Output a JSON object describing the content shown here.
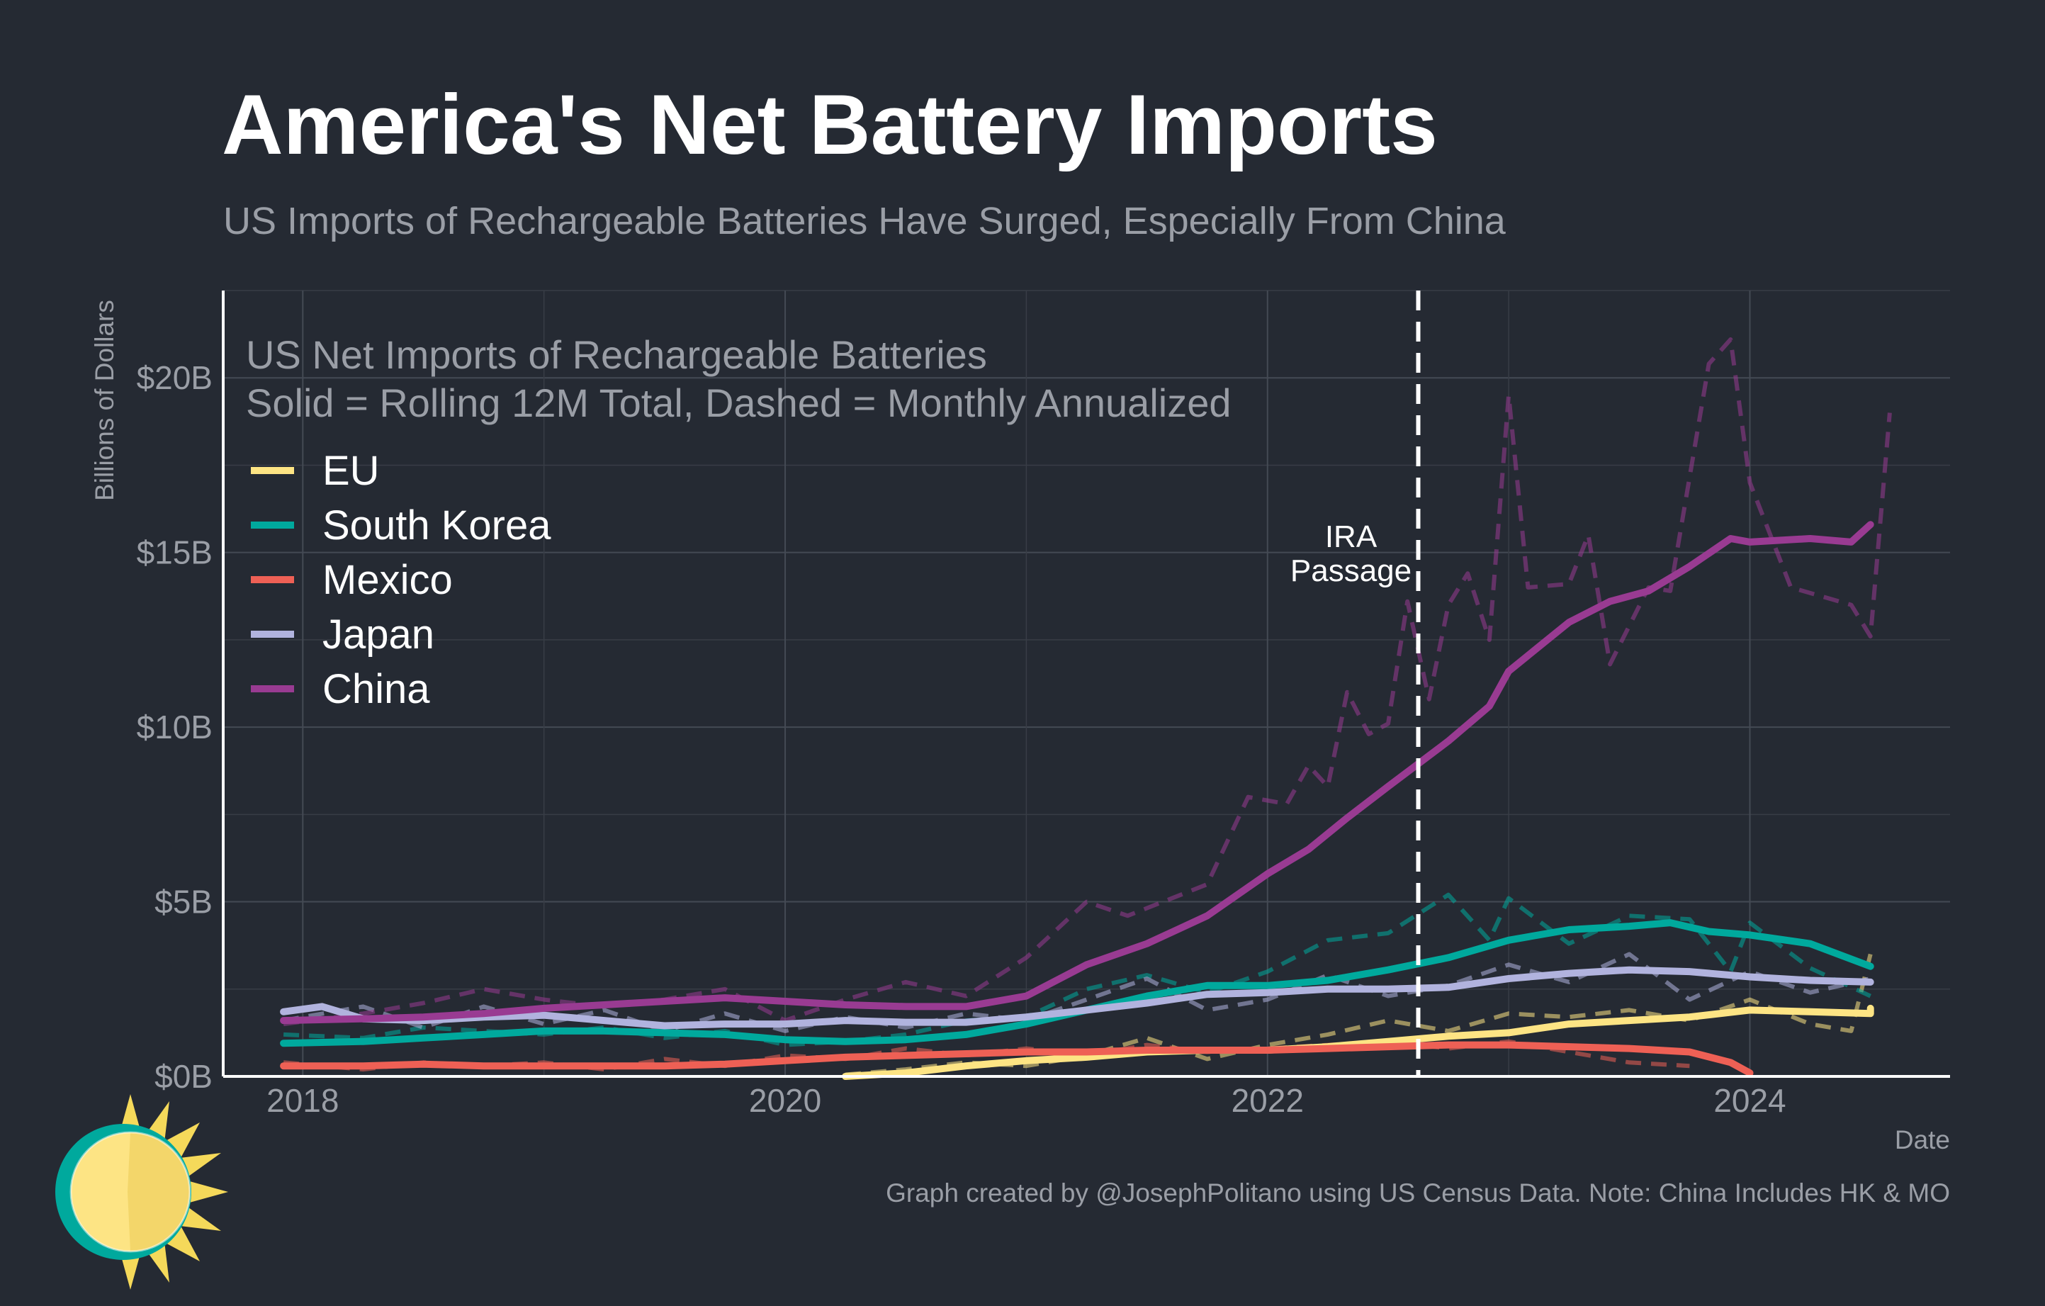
{
  "title": "America's Net Battery Imports",
  "subtitle": "US Imports of Rechargeable Batteries Have Surged, Especially From China",
  "caption": "Graph created by @JosephPolitano using US Census Data. Note: China Includes HK & MO",
  "logo": {
    "icon": "sun-logo-icon"
  },
  "chart_data": {
    "type": "line",
    "inner_title_line1": "US Net Imports of Rechargeable Batteries",
    "inner_title_line2": "Solid = Rolling 12M Total, Dashed = Monthly Annualized",
    "xlabel": "Date",
    "ylabel": "Billions of Dollars",
    "xlim": [
      2017.67,
      2024.83
    ],
    "ylim": [
      0,
      22.5
    ],
    "x_ticks": [
      {
        "value": 2018,
        "label": "2018"
      },
      {
        "value": 2020,
        "label": "2020"
      },
      {
        "value": 2022,
        "label": "2022"
      },
      {
        "value": 2024,
        "label": "2024"
      }
    ],
    "y_ticks": [
      {
        "value": 0,
        "label": "$0B"
      },
      {
        "value": 5,
        "label": "$5B"
      },
      {
        "value": 10,
        "label": "$10B"
      },
      {
        "value": 15,
        "label": "$15B"
      },
      {
        "value": 20,
        "label": "$20B"
      }
    ],
    "grid": true,
    "legend_position": "top-left",
    "annotation": {
      "x": 2022.625,
      "line1": "IRA",
      "line2": "Passage"
    },
    "series": [
      {
        "name": "EU",
        "color": "#fde484",
        "solid": [
          [
            2020.25,
            0
          ],
          [
            2020.5,
            0.1
          ],
          [
            2020.75,
            0.3
          ],
          [
            2021.0,
            0.45
          ],
          [
            2021.25,
            0.55
          ],
          [
            2021.5,
            0.7
          ],
          [
            2021.75,
            0.75
          ],
          [
            2022.0,
            0.75
          ],
          [
            2022.25,
            0.85
          ],
          [
            2022.5,
            1.0
          ],
          [
            2022.75,
            1.15
          ],
          [
            2023.0,
            1.25
          ],
          [
            2023.25,
            1.5
          ],
          [
            2023.5,
            1.6
          ],
          [
            2023.75,
            1.7
          ],
          [
            2024.0,
            1.9
          ],
          [
            2024.25,
            1.85
          ],
          [
            2024.5,
            1.8
          ],
          [
            2024.5,
            1.95
          ]
        ],
        "dashed": [
          [
            2020.25,
            0.05
          ],
          [
            2020.5,
            0.2
          ],
          [
            2020.75,
            0.4
          ],
          [
            2021.0,
            0.3
          ],
          [
            2021.25,
            0.6
          ],
          [
            2021.5,
            1.1
          ],
          [
            2021.75,
            0.5
          ],
          [
            2022.0,
            0.9
          ],
          [
            2022.25,
            1.2
          ],
          [
            2022.5,
            1.6
          ],
          [
            2022.75,
            1.3
          ],
          [
            2023.0,
            1.8
          ],
          [
            2023.25,
            1.7
          ],
          [
            2023.5,
            1.9
          ],
          [
            2023.75,
            1.6
          ],
          [
            2024.0,
            2.2
          ],
          [
            2024.25,
            1.5
          ],
          [
            2024.42,
            1.3
          ],
          [
            2024.5,
            3.5
          ]
        ]
      },
      {
        "name": "South Korea",
        "color": "#00a99d",
        "solid": [
          [
            2017.92,
            0.95
          ],
          [
            2018.25,
            1.0
          ],
          [
            2018.5,
            1.1
          ],
          [
            2018.75,
            1.2
          ],
          [
            2019.0,
            1.3
          ],
          [
            2019.25,
            1.3
          ],
          [
            2019.5,
            1.25
          ],
          [
            2019.75,
            1.2
          ],
          [
            2020.0,
            1.05
          ],
          [
            2020.25,
            1.0
          ],
          [
            2020.5,
            1.05
          ],
          [
            2020.75,
            1.2
          ],
          [
            2021.0,
            1.5
          ],
          [
            2021.25,
            1.9
          ],
          [
            2021.5,
            2.3
          ],
          [
            2021.75,
            2.6
          ],
          [
            2022.0,
            2.6
          ],
          [
            2022.25,
            2.75
          ],
          [
            2022.5,
            3.05
          ],
          [
            2022.75,
            3.4
          ],
          [
            2023.0,
            3.9
          ],
          [
            2023.25,
            4.2
          ],
          [
            2023.5,
            4.3
          ],
          [
            2023.67,
            4.4
          ],
          [
            2023.83,
            4.15
          ],
          [
            2024.0,
            4.05
          ],
          [
            2024.25,
            3.8
          ],
          [
            2024.5,
            3.15
          ]
        ],
        "dashed": [
          [
            2017.92,
            1.2
          ],
          [
            2018.25,
            1.1
          ],
          [
            2018.5,
            1.4
          ],
          [
            2018.75,
            1.3
          ],
          [
            2019.0,
            1.2
          ],
          [
            2019.25,
            1.4
          ],
          [
            2019.5,
            1.1
          ],
          [
            2019.75,
            1.3
          ],
          [
            2020.0,
            0.9
          ],
          [
            2020.25,
            1.0
          ],
          [
            2020.5,
            1.2
          ],
          [
            2020.75,
            1.6
          ],
          [
            2021.0,
            1.7
          ],
          [
            2021.25,
            2.5
          ],
          [
            2021.5,
            2.9
          ],
          [
            2021.75,
            2.4
          ],
          [
            2022.0,
            3.0
          ],
          [
            2022.25,
            3.9
          ],
          [
            2022.5,
            4.1
          ],
          [
            2022.75,
            5.2
          ],
          [
            2022.92,
            3.9
          ],
          [
            2023.0,
            5.1
          ],
          [
            2023.25,
            3.8
          ],
          [
            2023.5,
            4.6
          ],
          [
            2023.75,
            4.5
          ],
          [
            2023.92,
            3.0
          ],
          [
            2024.0,
            4.4
          ],
          [
            2024.25,
            3.1
          ],
          [
            2024.5,
            2.3
          ]
        ]
      },
      {
        "name": "Mexico",
        "color": "#ee6055",
        "solid": [
          [
            2017.92,
            0.3
          ],
          [
            2018.25,
            0.3
          ],
          [
            2018.5,
            0.35
          ],
          [
            2018.75,
            0.3
          ],
          [
            2019.0,
            0.3
          ],
          [
            2019.25,
            0.3
          ],
          [
            2019.5,
            0.3
          ],
          [
            2019.75,
            0.35
          ],
          [
            2020.0,
            0.45
          ],
          [
            2020.25,
            0.55
          ],
          [
            2020.5,
            0.6
          ],
          [
            2020.75,
            0.65
          ],
          [
            2021.0,
            0.7
          ],
          [
            2021.25,
            0.7
          ],
          [
            2021.5,
            0.75
          ],
          [
            2021.75,
            0.75
          ],
          [
            2022.0,
            0.75
          ],
          [
            2022.25,
            0.8
          ],
          [
            2022.5,
            0.85
          ],
          [
            2022.75,
            0.9
          ],
          [
            2023.0,
            0.9
          ],
          [
            2023.25,
            0.85
          ],
          [
            2023.5,
            0.8
          ],
          [
            2023.75,
            0.7
          ],
          [
            2023.92,
            0.4
          ],
          [
            2024.0,
            0.1
          ]
        ],
        "dashed": [
          [
            2017.92,
            0.4
          ],
          [
            2018.25,
            0.2
          ],
          [
            2018.5,
            0.4
          ],
          [
            2018.75,
            0.3
          ],
          [
            2019.0,
            0.4
          ],
          [
            2019.25,
            0.2
          ],
          [
            2019.5,
            0.5
          ],
          [
            2019.75,
            0.3
          ],
          [
            2020.0,
            0.6
          ],
          [
            2020.25,
            0.5
          ],
          [
            2020.5,
            0.8
          ],
          [
            2020.75,
            0.6
          ],
          [
            2021.0,
            0.8
          ],
          [
            2021.25,
            0.6
          ],
          [
            2021.5,
            0.9
          ],
          [
            2021.75,
            0.7
          ],
          [
            2022.0,
            0.8
          ],
          [
            2022.25,
            0.9
          ],
          [
            2022.5,
            1.0
          ],
          [
            2022.75,
            0.8
          ],
          [
            2023.0,
            1.0
          ],
          [
            2023.25,
            0.7
          ],
          [
            2023.5,
            0.4
          ],
          [
            2023.75,
            0.3
          ]
        ]
      },
      {
        "name": "Japan",
        "color": "#b1b3de",
        "solid": [
          [
            2017.92,
            1.85
          ],
          [
            2018.08,
            2.0
          ],
          [
            2018.25,
            1.65
          ],
          [
            2018.5,
            1.6
          ],
          [
            2018.75,
            1.7
          ],
          [
            2019.0,
            1.75
          ],
          [
            2019.25,
            1.6
          ],
          [
            2019.5,
            1.45
          ],
          [
            2019.75,
            1.5
          ],
          [
            2020.0,
            1.5
          ],
          [
            2020.25,
            1.6
          ],
          [
            2020.5,
            1.55
          ],
          [
            2020.75,
            1.55
          ],
          [
            2021.0,
            1.7
          ],
          [
            2021.25,
            1.9
          ],
          [
            2021.5,
            2.1
          ],
          [
            2021.75,
            2.35
          ],
          [
            2022.0,
            2.4
          ],
          [
            2022.25,
            2.5
          ],
          [
            2022.5,
            2.5
          ],
          [
            2022.75,
            2.55
          ],
          [
            2023.0,
            2.8
          ],
          [
            2023.25,
            2.95
          ],
          [
            2023.5,
            3.05
          ],
          [
            2023.75,
            3.0
          ],
          [
            2024.0,
            2.85
          ],
          [
            2024.25,
            2.75
          ],
          [
            2024.5,
            2.7
          ]
        ],
        "dashed": [
          [
            2017.92,
            1.6
          ],
          [
            2018.25,
            2.0
          ],
          [
            2018.5,
            1.4
          ],
          [
            2018.75,
            2.0
          ],
          [
            2019.0,
            1.5
          ],
          [
            2019.25,
            1.9
          ],
          [
            2019.5,
            1.3
          ],
          [
            2019.75,
            1.8
          ],
          [
            2020.0,
            1.3
          ],
          [
            2020.25,
            1.7
          ],
          [
            2020.5,
            1.4
          ],
          [
            2020.75,
            1.8
          ],
          [
            2021.0,
            1.6
          ],
          [
            2021.25,
            2.2
          ],
          [
            2021.5,
            2.8
          ],
          [
            2021.75,
            1.9
          ],
          [
            2022.0,
            2.2
          ],
          [
            2022.25,
            2.9
          ],
          [
            2022.5,
            2.3
          ],
          [
            2022.75,
            2.6
          ],
          [
            2023.0,
            3.2
          ],
          [
            2023.25,
            2.7
          ],
          [
            2023.5,
            3.5
          ],
          [
            2023.75,
            2.2
          ],
          [
            2024.0,
            3.0
          ],
          [
            2024.25,
            2.4
          ],
          [
            2024.5,
            2.8
          ]
        ]
      },
      {
        "name": "China",
        "color": "#993b92",
        "solid": [
          [
            2017.92,
            1.6
          ],
          [
            2018.25,
            1.65
          ],
          [
            2018.5,
            1.7
          ],
          [
            2018.75,
            1.8
          ],
          [
            2019.0,
            1.95
          ],
          [
            2019.25,
            2.05
          ],
          [
            2019.5,
            2.15
          ],
          [
            2019.75,
            2.25
          ],
          [
            2020.0,
            2.15
          ],
          [
            2020.25,
            2.05
          ],
          [
            2020.5,
            2.0
          ],
          [
            2020.75,
            2.0
          ],
          [
            2021.0,
            2.3
          ],
          [
            2021.25,
            3.2
          ],
          [
            2021.5,
            3.8
          ],
          [
            2021.75,
            4.6
          ],
          [
            2022.0,
            5.8
          ],
          [
            2022.17,
            6.5
          ],
          [
            2022.33,
            7.4
          ],
          [
            2022.5,
            8.3
          ],
          [
            2022.75,
            9.6
          ],
          [
            2022.92,
            10.6
          ],
          [
            2023.0,
            11.6
          ],
          [
            2023.25,
            13.0
          ],
          [
            2023.42,
            13.6
          ],
          [
            2023.58,
            13.9
          ],
          [
            2023.75,
            14.6
          ],
          [
            2023.92,
            15.4
          ],
          [
            2024.0,
            15.3
          ],
          [
            2024.25,
            15.4
          ],
          [
            2024.42,
            15.3
          ],
          [
            2024.5,
            15.8
          ]
        ],
        "dashed": [
          [
            2017.92,
            1.5
          ],
          [
            2018.25,
            1.8
          ],
          [
            2018.5,
            2.1
          ],
          [
            2018.75,
            2.5
          ],
          [
            2019.0,
            2.2
          ],
          [
            2019.25,
            2.0
          ],
          [
            2019.5,
            2.2
          ],
          [
            2019.75,
            2.5
          ],
          [
            2020.0,
            1.6
          ],
          [
            2020.25,
            2.2
          ],
          [
            2020.5,
            2.7
          ],
          [
            2020.75,
            2.3
          ],
          [
            2021.0,
            3.4
          ],
          [
            2021.25,
            5.0
          ],
          [
            2021.42,
            4.6
          ],
          [
            2021.75,
            5.5
          ],
          [
            2021.92,
            8.0
          ],
          [
            2022.08,
            7.8
          ],
          [
            2022.17,
            8.9
          ],
          [
            2022.25,
            8.3
          ],
          [
            2022.33,
            11.0
          ],
          [
            2022.42,
            9.8
          ],
          [
            2022.5,
            10.1
          ],
          [
            2022.58,
            13.6
          ],
          [
            2022.67,
            10.8
          ],
          [
            2022.75,
            13.5
          ],
          [
            2022.83,
            14.4
          ],
          [
            2022.92,
            12.5
          ],
          [
            2023.0,
            19.5
          ],
          [
            2023.08,
            14.0
          ],
          [
            2023.25,
            14.1
          ],
          [
            2023.33,
            15.5
          ],
          [
            2023.42,
            11.8
          ],
          [
            2023.58,
            14.0
          ],
          [
            2023.67,
            13.9
          ],
          [
            2023.83,
            20.4
          ],
          [
            2023.92,
            21.1
          ],
          [
            2024.0,
            17.0
          ],
          [
            2024.17,
            14.0
          ],
          [
            2024.42,
            13.5
          ],
          [
            2024.5,
            12.6
          ],
          [
            2024.58,
            19.0
          ]
        ]
      }
    ]
  }
}
